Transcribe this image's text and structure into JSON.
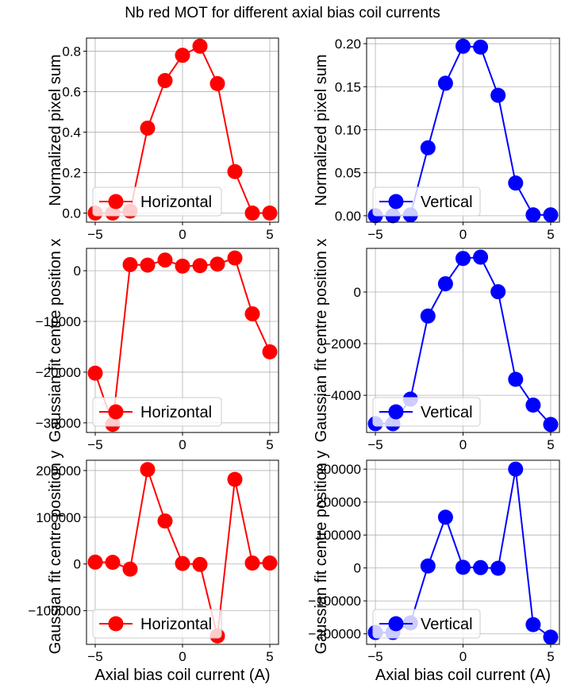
{
  "figure": {
    "title": "Nb red MOT for different axial bias coil currents"
  },
  "chart_data": [
    {
      "type": "line",
      "row": 0,
      "col": 0,
      "ylabel": "Normalized pixel sum",
      "xlabel": "",
      "series": [
        {
          "name": "Horizontal",
          "color": "#ff0000",
          "x": [
            -5,
            -4,
            -3,
            -2,
            -1,
            0,
            1,
            2,
            3,
            4,
            5
          ],
          "values": [
            0.0,
            0.0,
            0.01,
            0.42,
            0.655,
            0.78,
            0.825,
            0.64,
            0.205,
            0.0,
            0.0
          ]
        }
      ],
      "xlim": [
        -5.5,
        5.5
      ],
      "ylim": [
        -0.045,
        0.865
      ],
      "xticks": [
        -5,
        0,
        5
      ],
      "xticklabels": [
        "−5",
        "0",
        "5"
      ],
      "yticks": [
        0,
        0.2,
        0.4,
        0.6,
        0.8
      ],
      "yticklabels": [
        "0.0",
        "0.2",
        "0.4",
        "0.6",
        "0.8"
      ],
      "grid": true,
      "legend": "lower-left"
    },
    {
      "type": "line",
      "row": 0,
      "col": 1,
      "ylabel": "Normalized pixel sum",
      "xlabel": "",
      "series": [
        {
          "name": "Vertical",
          "color": "#0000ff",
          "x": [
            -5,
            -4,
            -3,
            -2,
            -1,
            0,
            1,
            2,
            3,
            4,
            5
          ],
          "values": [
            0.0,
            0.0,
            0.001,
            0.079,
            0.154,
            0.197,
            0.196,
            0.14,
            0.038,
            0.001,
            0.001
          ]
        }
      ],
      "xlim": [
        -5.5,
        5.5
      ],
      "ylim": [
        -0.0075,
        0.2065
      ],
      "xticks": [
        -5,
        0,
        5
      ],
      "xticklabels": [
        "−5",
        "0",
        "5"
      ],
      "yticks": [
        0,
        0.05,
        0.1,
        0.15,
        0.2
      ],
      "yticklabels": [
        "0.00",
        "0.05",
        "0.10",
        "0.15",
        "0.20"
      ],
      "grid": true,
      "legend": "lower-left"
    },
    {
      "type": "line",
      "row": 1,
      "col": 0,
      "ylabel": "Gaussian fit centre position x",
      "xlabel": "",
      "series": [
        {
          "name": "Horizontal",
          "color": "#ff0000",
          "x": [
            -5,
            -4,
            -3,
            -2,
            -1,
            0,
            1,
            2,
            3,
            4,
            5
          ],
          "values": [
            -20200,
            -30300,
            1200,
            1100,
            2100,
            900,
            1000,
            1300,
            2500,
            -8500,
            -16000
          ]
        }
      ],
      "xlim": [
        -5.5,
        5.5
      ],
      "ylim": [
        -31900,
        4400
      ],
      "xticks": [
        -5,
        0,
        5
      ],
      "xticklabels": [
        "−5",
        "0",
        "5"
      ],
      "yticks": [
        -30000,
        -20000,
        -10000,
        0
      ],
      "yticklabels": [
        "−30000",
        "−20000",
        "−10000",
        "0"
      ],
      "grid": true,
      "legend": "lower-left"
    },
    {
      "type": "line",
      "row": 1,
      "col": 1,
      "ylabel": "Gaussian fit centre position x",
      "xlabel": "",
      "series": [
        {
          "name": "Vertical",
          "color": "#0000ff",
          "x": [
            -5,
            -4,
            -3,
            -2,
            -1,
            0,
            1,
            2,
            3,
            4,
            5
          ],
          "values": [
            -5100,
            -5100,
            -4150,
            -930,
            320,
            1300,
            1350,
            10,
            -3380,
            -4380,
            -5130
          ]
        }
      ],
      "xlim": [
        -5.5,
        5.5
      ],
      "ylim": [
        -5440,
        1690
      ],
      "xticks": [
        -5,
        0,
        5
      ],
      "xticklabels": [
        "−5",
        "0",
        "5"
      ],
      "yticks": [
        -4000,
        -2000,
        0
      ],
      "yticklabels": [
        "−4000",
        "−2000",
        "0"
      ],
      "grid": true,
      "legend": "lower-left"
    },
    {
      "type": "line",
      "row": 2,
      "col": 0,
      "ylabel": "Gaussian fit centre position y",
      "xlabel": "Axial bias coil current (A)",
      "series": [
        {
          "name": "Horizontal",
          "color": "#ff0000",
          "x": [
            -5,
            -4,
            -3,
            -2,
            -1,
            0,
            1,
            2,
            3,
            4,
            5
          ],
          "values": [
            4000,
            3500,
            -11000,
            202000,
            92000,
            1000,
            -1000,
            -154000,
            181000,
            2000,
            2000
          ]
        }
      ],
      "xlim": [
        -5.5,
        5.5
      ],
      "ylim": [
        -172000,
        222000
      ],
      "xticks": [
        -5,
        0,
        5
      ],
      "xticklabels": [
        "−5",
        "0",
        "5"
      ],
      "yticks": [
        -100000,
        0,
        100000,
        200000
      ],
      "yticklabels": [
        "−100000",
        "0",
        "100000",
        "200000"
      ],
      "grid": true,
      "legend": "lower-left"
    },
    {
      "type": "line",
      "row": 2,
      "col": 1,
      "ylabel": "Gaussian fit centre position y",
      "xlabel": "Axial bias coil current (A)",
      "series": [
        {
          "name": "Vertical",
          "color": "#0000ff",
          "x": [
            -5,
            -4,
            -3,
            -2,
            -1,
            0,
            1,
            2,
            3,
            4,
            5
          ],
          "values": [
            -196000,
            -196000,
            -167000,
            6000,
            154000,
            2000,
            1000,
            -1000,
            300000,
            -172000,
            -210000
          ]
        }
      ],
      "xlim": [
        -5.5,
        5.5
      ],
      "ylim": [
        -232000,
        327000
      ],
      "xticks": [
        -5,
        0,
        5
      ],
      "xticklabels": [
        "−5",
        "0",
        "5"
      ],
      "yticks": [
        -200000,
        -100000,
        0,
        100000,
        200000,
        300000
      ],
      "yticklabels": [
        "−200000",
        "−100000",
        "0",
        "100000",
        "200000",
        "300000"
      ],
      "grid": true,
      "legend": "lower-left"
    }
  ]
}
